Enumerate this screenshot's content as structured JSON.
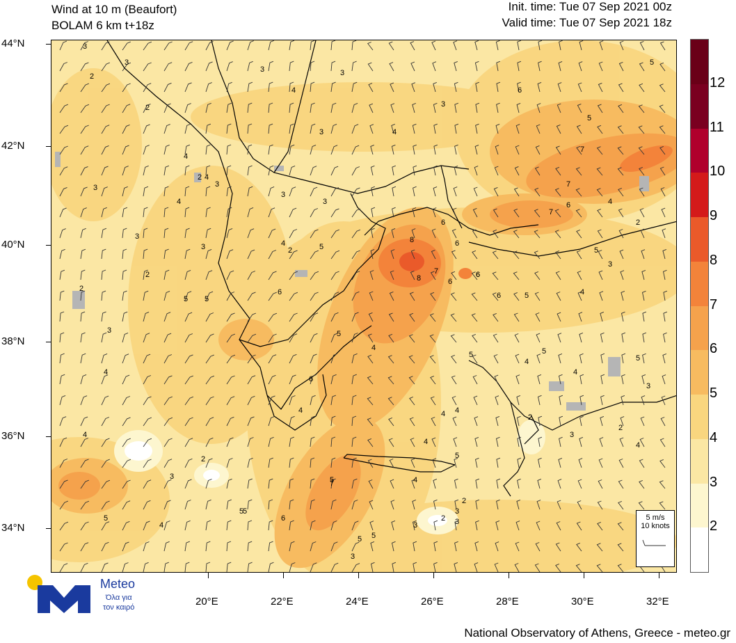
{
  "header": {
    "title_line1": "Wind at 10 m (Beaufort)",
    "title_line2": "BOLAM 6 km t+18z",
    "init_time": "Init. time: Tue 07 Sep 2021 00z",
    "valid_time": "Valid time: Tue 07 Sep 2021 18z"
  },
  "axes": {
    "latitudes": [
      "44°N",
      "42°N",
      "40°N",
      "38°N",
      "36°N",
      "34°N"
    ],
    "longitudes": [
      "20°E",
      "22°E",
      "24°E",
      "26°E",
      "28°E",
      "30°E",
      "32°E"
    ]
  },
  "legend": {
    "labels": [
      "12",
      "11",
      "10",
      "9",
      "8",
      "7",
      "6",
      "5",
      "4",
      "3",
      "2"
    ],
    "colors": [
      "#7a0020",
      "#b0002c",
      "#d41a1a",
      "#ea5a2a",
      "#f3833a",
      "#f5a24c",
      "#f7bb60",
      "#f9d67f",
      "#fbe7a4",
      "#fdf6cf",
      "#ffffff"
    ]
  },
  "reference_vector": {
    "line1": "5 m/s",
    "line2": "10 knots"
  },
  "logo": {
    "name": "Meteo",
    "tagline_line1": "Όλα για",
    "tagline_line2": "τον καιρό",
    "dot_color": "#f5c400",
    "brand_color": "#1a3a9e"
  },
  "footer": "National Observatory of Athens, Greece - meteo.gr",
  "map_labels": [
    "3",
    "3",
    "3",
    "4",
    "3",
    "3",
    "4",
    "3",
    "2",
    "4",
    "5",
    "5",
    "2",
    "3",
    "3",
    "3",
    "4",
    "4",
    "2",
    "2",
    "3",
    "5",
    "3",
    "3",
    "4",
    "5",
    "6",
    "6",
    "7",
    "7",
    "6",
    "6",
    "7",
    "5",
    "8",
    "8",
    "7",
    "6",
    "6",
    "6",
    "5",
    "5",
    "4",
    "3",
    "4",
    "2",
    "3",
    "2",
    "4",
    "5",
    "6",
    "5",
    "4",
    "5",
    "5",
    "7",
    "6",
    "5",
    "5",
    "4",
    "3",
    "2",
    "2",
    "3",
    "2",
    "4",
    "5",
    "6",
    "4",
    "3",
    "4",
    "5",
    "2",
    "3",
    "4",
    "3",
    "2",
    "4",
    "5",
    "6",
    "4",
    "4",
    "3",
    "5",
    "4",
    "2",
    "3",
    "5",
    "2",
    "4"
  ]
}
